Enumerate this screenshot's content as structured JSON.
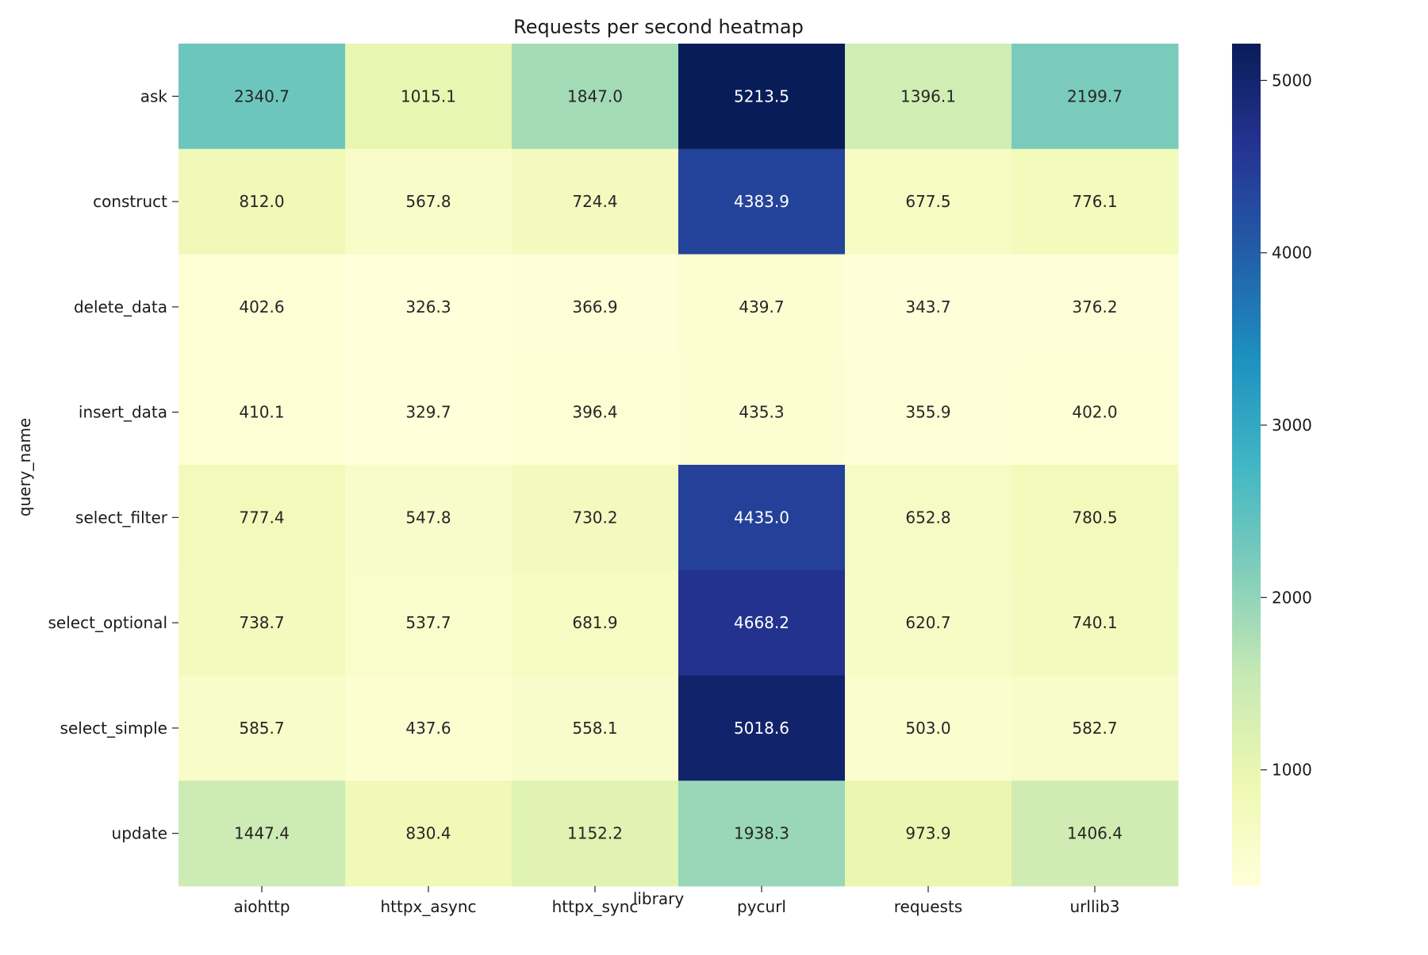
{
  "chart_data": {
    "type": "heatmap",
    "title": "Requests per second heatmap",
    "xlabel": "library",
    "ylabel": "query_name",
    "x_categories": [
      "aiohttp",
      "httpx_async",
      "httpx_sync",
      "pycurl",
      "requests",
      "urllib3"
    ],
    "y_categories": [
      "ask",
      "construct",
      "delete_data",
      "insert_data",
      "select_filter",
      "select_optional",
      "select_simple",
      "update"
    ],
    "values": [
      [
        2340.7,
        1015.1,
        1847.0,
        5213.5,
        1396.1,
        2199.7
      ],
      [
        812.0,
        567.8,
        724.4,
        4383.9,
        677.5,
        776.1
      ],
      [
        402.6,
        326.3,
        366.9,
        439.7,
        343.7,
        376.2
      ],
      [
        410.1,
        329.7,
        396.4,
        435.3,
        355.9,
        402.0
      ],
      [
        777.4,
        547.8,
        730.2,
        4435.0,
        652.8,
        780.5
      ],
      [
        738.7,
        537.7,
        681.9,
        4668.2,
        620.7,
        740.1
      ],
      [
        585.7,
        437.6,
        558.1,
        5018.6,
        503.0,
        582.7
      ],
      [
        1447.4,
        830.4,
        1152.2,
        1938.3,
        973.9,
        1406.4
      ]
    ],
    "colormap": "YlGnBu",
    "color_range": [
      326.3,
      5213.5
    ],
    "colorbar_ticks": [
      "1000",
      "2000",
      "3000",
      "4000",
      "5000"
    ],
    "cell_label_format": "one decimal",
    "colormap_stops": [
      "#ffffd9",
      "#edf8b1",
      "#c7e9b4",
      "#7fcdbb",
      "#41b6c4",
      "#1d91c0",
      "#225ea8",
      "#253494",
      "#081d58"
    ]
  }
}
